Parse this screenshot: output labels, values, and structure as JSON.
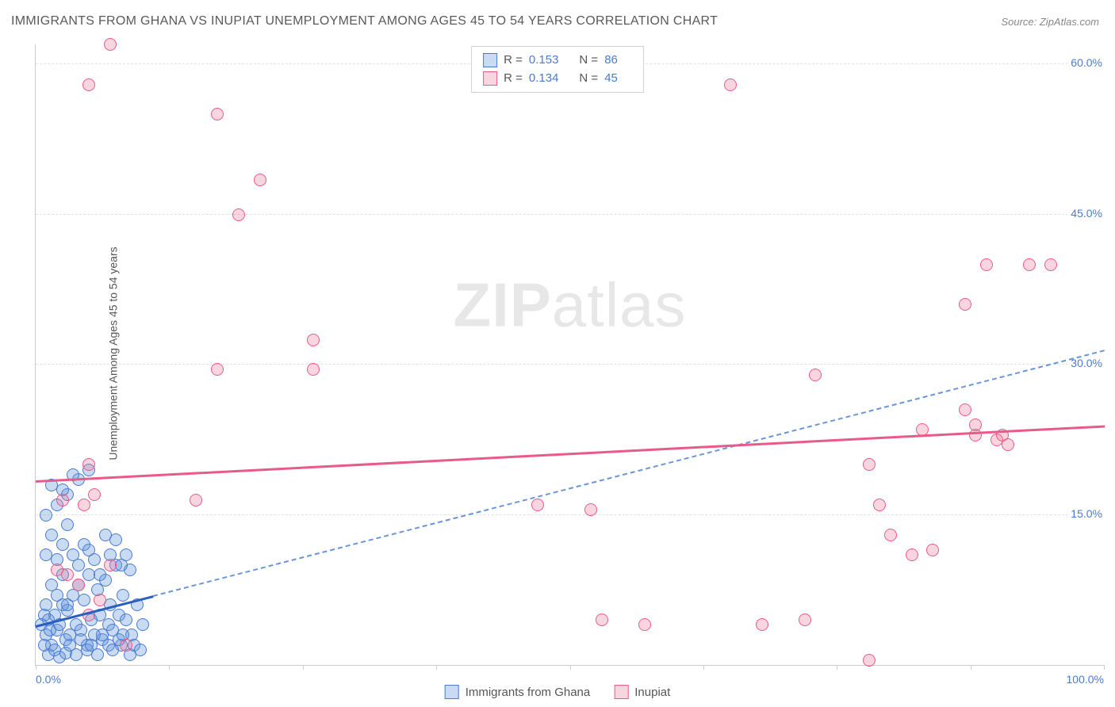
{
  "title": "IMMIGRANTS FROM GHANA VS INUPIAT UNEMPLOYMENT AMONG AGES 45 TO 54 YEARS CORRELATION CHART",
  "source": "Source: ZipAtlas.com",
  "y_axis_label": "Unemployment Among Ages 45 to 54 years",
  "watermark_a": "ZIP",
  "watermark_b": "atlas",
  "chart": {
    "type": "scatter",
    "xlim": [
      0,
      100
    ],
    "ylim": [
      0,
      62
    ],
    "x_ticks": [
      0,
      50,
      100
    ],
    "x_tick_labels": [
      "0.0%",
      "",
      "100.0%"
    ],
    "x_minor_ticks": [
      12.5,
      25,
      37.5,
      62.5,
      75,
      87.5
    ],
    "y_ticks": [
      15,
      30,
      45,
      60
    ],
    "y_tick_labels": [
      "15.0%",
      "30.0%",
      "45.0%",
      "60.0%"
    ],
    "background_color": "#ffffff",
    "grid_color": "#e0e0e0",
    "marker_radius": 8,
    "series": [
      {
        "name": "Immigrants from Ghana",
        "label": "Immigrants from Ghana",
        "R": "0.153",
        "N": "86",
        "fill": "rgba(100,150,220,0.35)",
        "stroke": "#4a7bd0",
        "trend_solid": {
          "x1": 0,
          "y1": 4.0,
          "x2": 11,
          "y2": 7.0,
          "color": "#2a5fc0",
          "width": 2.5
        },
        "trend_dash": {
          "x1": 11,
          "y1": 7.0,
          "x2": 100,
          "y2": 31.5,
          "color": "#6a95d8"
        },
        "points": [
          [
            1.0,
            3.0
          ],
          [
            1.2,
            4.5
          ],
          [
            1.5,
            2.0
          ],
          [
            1.8,
            5.0
          ],
          [
            2.0,
            3.5
          ],
          [
            2.2,
            4.0
          ],
          [
            2.5,
            6.0
          ],
          [
            2.8,
            2.5
          ],
          [
            3.0,
            5.5
          ],
          [
            3.2,
            3.0
          ],
          [
            3.5,
            7.0
          ],
          [
            3.8,
            4.0
          ],
          [
            4.0,
            8.0
          ],
          [
            4.2,
            3.5
          ],
          [
            4.5,
            6.5
          ],
          [
            4.8,
            2.0
          ],
          [
            5.0,
            9.0
          ],
          [
            5.2,
            4.5
          ],
          [
            5.5,
            3.0
          ],
          [
            5.8,
            7.5
          ],
          [
            6.0,
            5.0
          ],
          [
            6.2,
            2.5
          ],
          [
            6.5,
            8.5
          ],
          [
            6.8,
            4.0
          ],
          [
            7.0,
            6.0
          ],
          [
            7.2,
            3.5
          ],
          [
            7.5,
            10.0
          ],
          [
            7.8,
            5.0
          ],
          [
            8.0,
            2.0
          ],
          [
            8.2,
            7.0
          ],
          [
            8.5,
            4.5
          ],
          [
            8.8,
            9.5
          ],
          [
            9.0,
            3.0
          ],
          [
            9.5,
            6.0
          ],
          [
            10.0,
            4.0
          ],
          [
            1.0,
            11.0
          ],
          [
            1.5,
            13.0
          ],
          [
            2.0,
            10.5
          ],
          [
            2.5,
            12.0
          ],
          [
            3.0,
            14.0
          ],
          [
            1.2,
            1.0
          ],
          [
            1.8,
            1.5
          ],
          [
            2.2,
            0.8
          ],
          [
            2.8,
            1.2
          ],
          [
            3.2,
            2.0
          ],
          [
            3.8,
            1.0
          ],
          [
            4.2,
            2.5
          ],
          [
            4.8,
            1.5
          ],
          [
            5.2,
            2.0
          ],
          [
            5.8,
            1.0
          ],
          [
            6.2,
            3.0
          ],
          [
            6.8,
            2.0
          ],
          [
            7.2,
            1.5
          ],
          [
            7.8,
            2.5
          ],
          [
            8.2,
            3.0
          ],
          [
            8.8,
            1.0
          ],
          [
            9.2,
            2.0
          ],
          [
            9.8,
            1.5
          ],
          [
            0.8,
            5.0
          ],
          [
            1.5,
            8.0
          ],
          [
            2.0,
            7.0
          ],
          [
            2.5,
            9.0
          ],
          [
            3.0,
            6.0
          ],
          [
            3.5,
            11.0
          ],
          [
            4.0,
            10.0
          ],
          [
            4.5,
            12.0
          ],
          [
            5.0,
            11.5
          ],
          [
            5.5,
            10.5
          ],
          [
            6.0,
            9.0
          ],
          [
            6.5,
            13.0
          ],
          [
            7.0,
            11.0
          ],
          [
            7.5,
            12.5
          ],
          [
            8.0,
            10.0
          ],
          [
            8.5,
            11.0
          ],
          [
            1.0,
            15.0
          ],
          [
            3.0,
            17.0
          ],
          [
            2.0,
            16.0
          ],
          [
            4.0,
            18.5
          ],
          [
            5.0,
            19.5
          ],
          [
            1.5,
            18.0
          ],
          [
            3.5,
            19.0
          ],
          [
            2.5,
            17.5
          ],
          [
            0.5,
            4.0
          ],
          [
            0.8,
            2.0
          ],
          [
            1.0,
            6.0
          ],
          [
            1.3,
            3.5
          ]
        ]
      },
      {
        "name": "Inupiat",
        "label": "Inupiat",
        "R": "0.134",
        "N": "45",
        "fill": "rgba(235,120,150,0.30)",
        "stroke": "#e85a8a",
        "trend_solid": {
          "x1": 0,
          "y1": 18.5,
          "x2": 100,
          "y2": 24.0,
          "color": "#e85a8a",
          "width": 2.5
        },
        "points": [
          [
            7.0,
            62.0
          ],
          [
            5.0,
            58.0
          ],
          [
            17.0,
            55.0
          ],
          [
            19.0,
            45.0
          ],
          [
            21.0,
            48.5
          ],
          [
            26.0,
            32.5
          ],
          [
            17.0,
            29.5
          ],
          [
            26.0,
            29.5
          ],
          [
            2.5,
            16.5
          ],
          [
            4.5,
            16.0
          ],
          [
            5.5,
            17.0
          ],
          [
            6.0,
            6.5
          ],
          [
            7.0,
            10.0
          ],
          [
            2.0,
            9.5
          ],
          [
            3.0,
            9.0
          ],
          [
            4.0,
            8.0
          ],
          [
            5.0,
            5.0
          ],
          [
            8.5,
            2.0
          ],
          [
            15.0,
            16.5
          ],
          [
            47.0,
            16.0
          ],
          [
            52.0,
            15.5
          ],
          [
            53.0,
            4.5
          ],
          [
            57.0,
            4.0
          ],
          [
            65.0,
            58.0
          ],
          [
            73.0,
            29.0
          ],
          [
            79.0,
            16.0
          ],
          [
            80.0,
            13.0
          ],
          [
            78.0,
            20.0
          ],
          [
            82.0,
            11.0
          ],
          [
            84.0,
            11.5
          ],
          [
            87.0,
            36.0
          ],
          [
            87.0,
            25.5
          ],
          [
            88.0,
            23.0
          ],
          [
            89.0,
            40.0
          ],
          [
            90.0,
            22.5
          ],
          [
            90.5,
            23.0
          ],
          [
            91.0,
            22.0
          ],
          [
            93.0,
            40.0
          ],
          [
            95.0,
            40.0
          ],
          [
            68.0,
            4.0
          ],
          [
            72.0,
            4.5
          ],
          [
            78.0,
            0.5
          ],
          [
            5.0,
            20.0
          ],
          [
            83.0,
            23.5
          ],
          [
            88.0,
            24.0
          ]
        ]
      }
    ]
  },
  "legend_stat_labels": {
    "R": "R =",
    "N": "N ="
  }
}
